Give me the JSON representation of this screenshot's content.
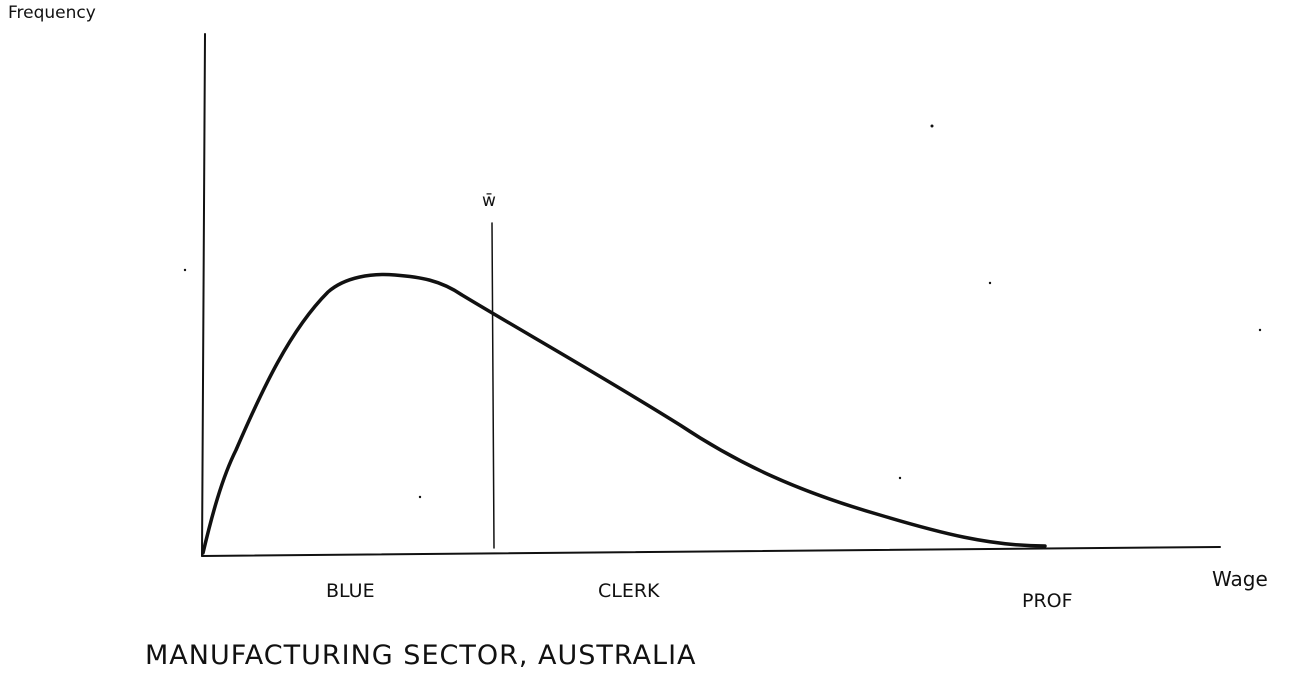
{
  "diagram": {
    "ylabel": "Frequency",
    "xlabel": "Wage",
    "mean_label": "w̄",
    "regions": [
      "BLUE",
      "CLERK",
      "PROF"
    ],
    "caption": "MANUFACTURING SECTOR, AUSTRALIA",
    "ink_color": "#111111"
  }
}
